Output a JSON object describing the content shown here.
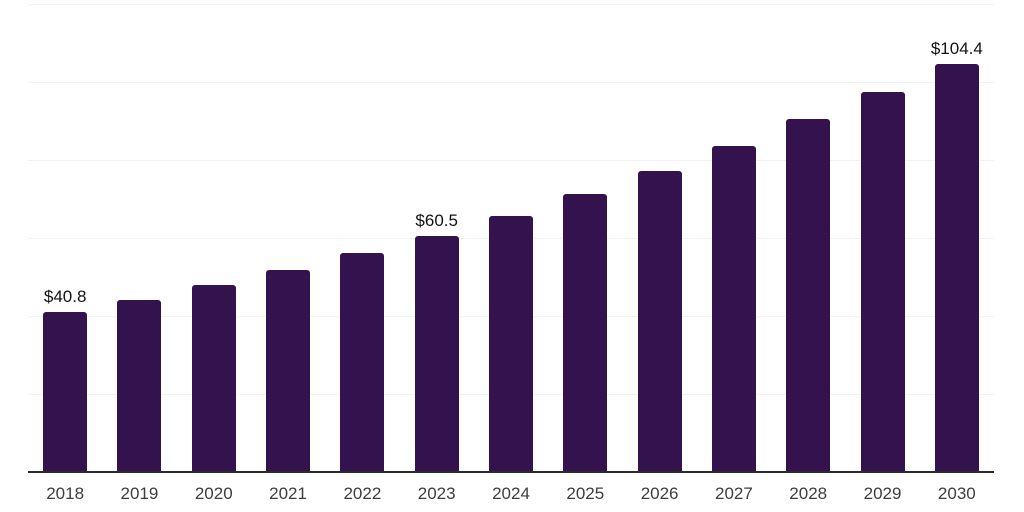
{
  "chart_data": {
    "type": "bar",
    "title": "",
    "xlabel": "",
    "ylabel": "",
    "categories": [
      "2018",
      "2019",
      "2020",
      "2021",
      "2022",
      "2023",
      "2024",
      "2025",
      "2026",
      "2027",
      "2028",
      "2029",
      "2030"
    ],
    "values": [
      40.8,
      44.1,
      47.7,
      51.6,
      55.9,
      60.5,
      65.6,
      71.1,
      77.1,
      83.5,
      90.3,
      97.3,
      104.4
    ],
    "data_labels": {
      "2018": "$40.8",
      "2023": "$60.5",
      "2030": "$104.4"
    },
    "ylim": [
      0,
      120
    ],
    "gridline_interval": 20,
    "grid": true,
    "legend_position": "none",
    "y_axis_labels_visible": false,
    "colors": {
      "bar": "#34124E",
      "gridline": "#f2f2f2",
      "axis_line": "#2b2b2b",
      "data_label_text": "#121212",
      "x_label_text": "#3d3d3d",
      "background": "#ffffff"
    }
  }
}
